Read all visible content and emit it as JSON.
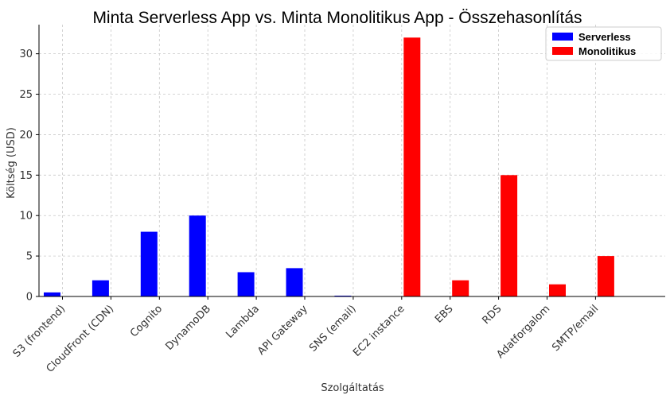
{
  "chart_data": {
    "type": "bar",
    "title": "Minta Serverless App vs. Minta Monolitikus App - Összehasonlítás",
    "xlabel": "Szolgáltatás",
    "ylabel": "Költség (USD)",
    "categories": [
      "S3 (frontend)",
      "CloudFront (CDN)",
      "Cognito",
      "DynamoDB",
      "Lambda",
      "API Gateway",
      "SNS (email)",
      "EC2 instance",
      "EBS",
      "RDS",
      "Adatforgalom",
      "SMTP/email"
    ],
    "series": [
      {
        "name": "Serverless",
        "color": "#0000ff",
        "values": [
          0.5,
          2,
          8,
          10,
          3,
          3.5,
          0.1,
          0,
          0,
          0,
          0,
          0
        ]
      },
      {
        "name": "Monolitikus",
        "color": "#ff0000",
        "values": [
          0,
          0,
          0,
          0,
          0,
          0,
          0,
          32,
          2,
          15,
          1.5,
          5
        ]
      }
    ],
    "ylim": [
      0,
      33.6
    ],
    "yticks": [
      0,
      5,
      10,
      15,
      20,
      25,
      30
    ],
    "grid": true,
    "legend_position": "top-right"
  }
}
